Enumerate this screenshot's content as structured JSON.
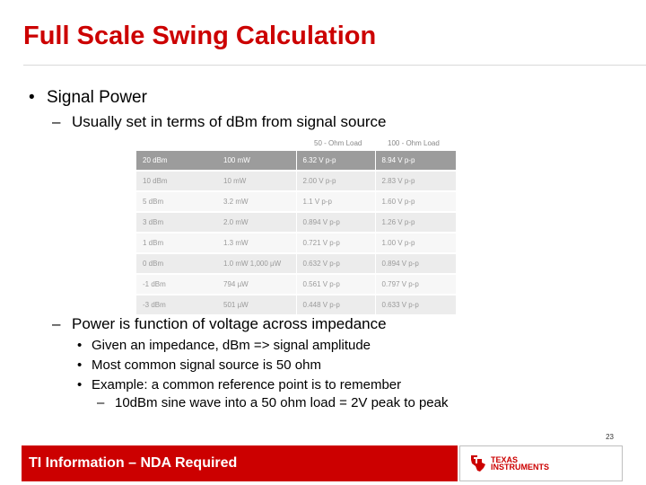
{
  "slide": {
    "title": "Full Scale Swing Calculation",
    "page_number": "23"
  },
  "bullets": {
    "level1": "Signal Power",
    "sub1": "Usually set in terms of dBm from signal source",
    "sub2": "Power is function of voltage across impedance",
    "items": [
      "Given an impedance, dBm => signal amplitude",
      "Most common signal source is 50 ohm",
      "Example: a common reference point is to remember"
    ],
    "example": "10dBm sine wave into a 50 ohm load = 2V peak to peak"
  },
  "table": {
    "caption_50": "50 - Ohm Load",
    "caption_100": "100 - Ohm Load",
    "rows": [
      [
        "20 dBm",
        "100 mW",
        "6.32 V p-p",
        "8.94 V p-p"
      ],
      [
        "10 dBm",
        "10 mW",
        "2.00 V p-p",
        "2.83 V p-p"
      ],
      [
        "5 dBm",
        "3.2 mW",
        "1.1 V p-p",
        "1.60 V p-p"
      ],
      [
        "3 dBm",
        "2.0 mW",
        "0.894 V p-p",
        "1.26 V p-p"
      ],
      [
        "1 dBm",
        "1.3 mW",
        "0.721 V p-p",
        "1.00 V p-p"
      ],
      [
        "0 dBm",
        "1.0 mW    1,000 µW",
        "0.632 V p-p",
        "0.894 V p-p"
      ],
      [
        "-1 dBm",
        "794 µW",
        "0.561 V p-p",
        "0.797 V p-p"
      ],
      [
        "-3 dBm",
        "501 µW",
        "0.448 V p-p",
        "0.633 V p-p"
      ]
    ]
  },
  "footer": {
    "label": "TI Information – NDA Required",
    "logo_line1": "TEXAS",
    "logo_line2": "INSTRUMENTS",
    "logo_color": "#cc0000"
  },
  "colors": {
    "accent": "#cc0000"
  }
}
